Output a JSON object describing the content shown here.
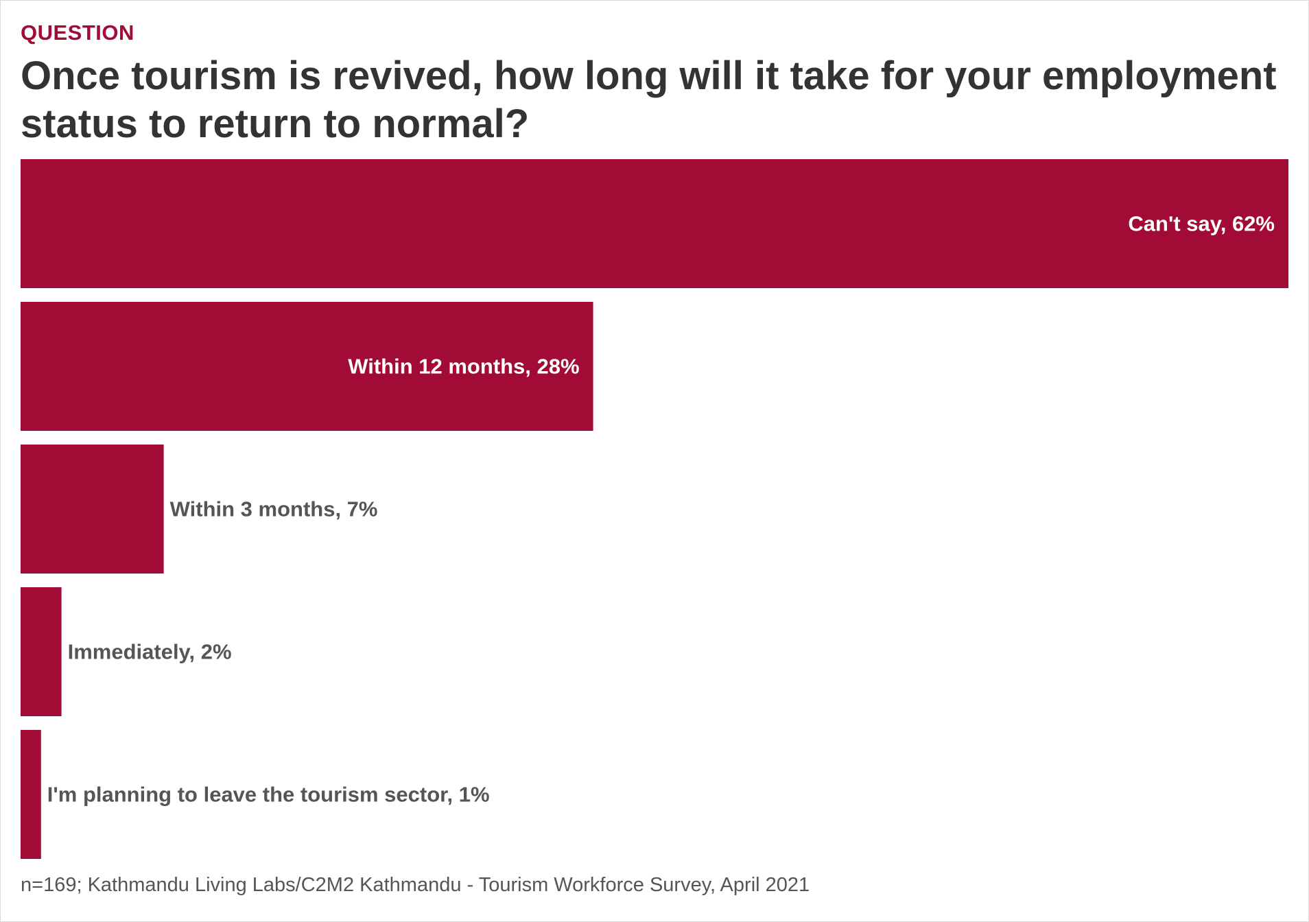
{
  "header": {
    "kicker": "QUESTION",
    "title": "Once tourism is revived, how long will it take for your employment status to return to normal?"
  },
  "footer": {
    "note": "n=169; Kathmandu Living Labs/C2M2 Kathmandu - Tourism Workforce Survey, April 2021"
  },
  "colors": {
    "bar": "#a20b35",
    "label_inside": "#ffffff",
    "label_outside": "#555555"
  },
  "chart_data": {
    "type": "bar",
    "orientation": "horizontal",
    "categories": [
      "Can't say",
      "Within 12 months",
      "Within 3 months",
      "Immediately",
      "I'm planning to leave the tourism sector"
    ],
    "values": [
      62,
      28,
      7,
      2,
      1
    ],
    "unit": "%",
    "value_labels": [
      "Can't say, 62%",
      "Within 12 months, 28%",
      "Within 3 months, 7%",
      "Immediately, 2%",
      "I'm planning to leave the tourism sector, 1%"
    ],
    "xlim": [
      0,
      62
    ],
    "grid": false,
    "legend": "none"
  }
}
